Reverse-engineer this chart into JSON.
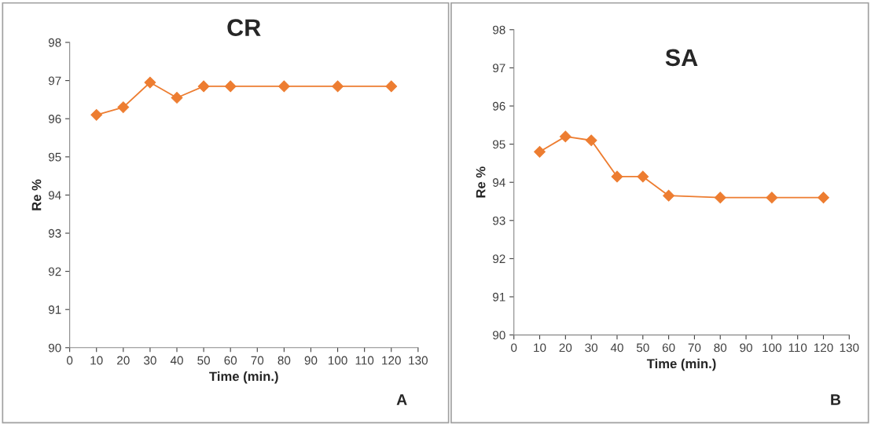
{
  "chart_data": [
    {
      "type": "line",
      "title": "CR",
      "xlabel": "Time (min.)",
      "ylabel": "Re %",
      "annotations": [
        "A"
      ],
      "x": [
        10,
        20,
        30,
        40,
        50,
        60,
        80,
        100,
        120
      ],
      "series": [
        {
          "color": "#ed7d31",
          "values": [
            96.1,
            96.3,
            96.95,
            96.55,
            96.85,
            96.85,
            96.85,
            96.85,
            96.85
          ]
        }
      ],
      "xlim": [
        0,
        130
      ],
      "xticks": [
        0,
        10,
        20,
        30,
        40,
        50,
        60,
        70,
        80,
        90,
        100,
        110,
        120,
        130
      ],
      "ylim": [
        90,
        98
      ],
      "yticks": [
        90,
        91,
        92,
        93,
        94,
        95,
        96,
        97,
        98
      ],
      "grid": false,
      "legend": false,
      "marker": "diamond",
      "line_style": "solid"
    },
    {
      "type": "line",
      "title": "SA",
      "xlabel": "Time (min.)",
      "ylabel": "Re %",
      "annotations": [
        "B"
      ],
      "x": [
        10,
        20,
        30,
        40,
        50,
        60,
        80,
        100,
        120
      ],
      "series": [
        {
          "color": "#ed7d31",
          "values": [
            94.8,
            95.2,
            95.1,
            94.15,
            94.15,
            93.65,
            93.6,
            93.6,
            93.6
          ]
        }
      ],
      "xlim": [
        0,
        130
      ],
      "xticks": [
        0,
        10,
        20,
        30,
        40,
        50,
        60,
        70,
        80,
        90,
        100,
        110,
        120,
        130
      ],
      "ylim": [
        90,
        98
      ],
      "yticks": [
        90,
        91,
        92,
        93,
        94,
        95,
        96,
        97,
        98
      ],
      "grid": false,
      "legend": false,
      "marker": "diamond",
      "line_style": "solid"
    }
  ]
}
